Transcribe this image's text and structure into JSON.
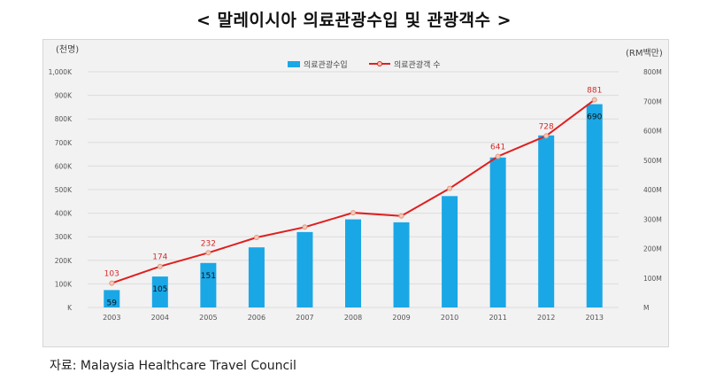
{
  "title": "< 말레이시아 의료관광수입 및 관광객수 >",
  "source": "자료: Malaysia Healthcare Travel Council",
  "chart_data": {
    "type": "bar+line",
    "categories": [
      "2003",
      "2004",
      "2005",
      "2006",
      "2007",
      "2008",
      "2009",
      "2010",
      "2011",
      "2012",
      "2013"
    ],
    "left_axis": {
      "unit_label": "(천명)",
      "ticks": [
        "K",
        "100K",
        "200K",
        "300K",
        "400K",
        "500K",
        "600K",
        "700K",
        "800K",
        "900K",
        "1,000K"
      ],
      "range": [
        0,
        1000
      ]
    },
    "right_axis": {
      "unit_label": "(RM백만)",
      "ticks": [
        "M",
        "100M",
        "200M",
        "300M",
        "400M",
        "500M",
        "600M",
        "700M",
        "800M"
      ],
      "range": [
        0,
        800
      ]
    },
    "legend": {
      "placement": "top-center"
    },
    "series": [
      {
        "name": "의료관광수입",
        "kind": "bar",
        "axis": "right",
        "color": "#1aa7e6",
        "values": [
          59,
          105,
          151,
          204,
          256,
          299,
          289,
          378,
          509,
          584,
          690
        ],
        "data_labels": [
          "59",
          "105",
          "151",
          "",
          "",
          "",
          "",
          "",
          "",
          "",
          "690"
        ]
      },
      {
        "name": "의료관광객 수",
        "kind": "line",
        "axis": "left",
        "color": "#e01f1f",
        "values": [
          103,
          174,
          232,
          297,
          341,
          402,
          388,
          505,
          641,
          728,
          881
        ],
        "data_labels": [
          "103",
          "174",
          "232",
          "",
          "",
          "",
          "",
          "",
          "641",
          "728",
          "881"
        ]
      }
    ]
  }
}
